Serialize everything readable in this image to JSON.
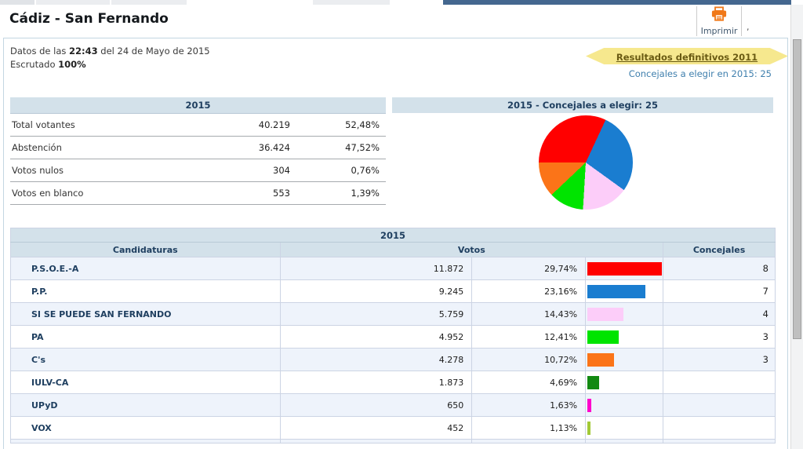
{
  "header": {
    "title": "Cádiz - San Fernando",
    "print_label": "Imprimir",
    "print_suffix": ","
  },
  "status": {
    "line1_prefix": "Datos de las ",
    "time": "22:43",
    "line1_suffix": " del 24 de Mayo de 2015",
    "line2_prefix": "Escrutado ",
    "line2_value": "100%"
  },
  "links": {
    "final_results": "Resultados definitivos 2011",
    "councillors_note": "Concejales a elegir en 2015: 25"
  },
  "summary_table": {
    "title": "2015",
    "rows": [
      {
        "label": "Total votantes",
        "value": "40.219",
        "pct": "52,48%"
      },
      {
        "label": "Abstención",
        "value": "36.424",
        "pct": "47,52%"
      },
      {
        "label": "Votos nulos",
        "value": "304",
        "pct": "0,76%"
      },
      {
        "label": "Votos en blanco",
        "value": "553",
        "pct": "1,39%"
      }
    ]
  },
  "pie_panel": {
    "title": "2015 - Concejales a elegir: 25"
  },
  "results_table": {
    "title": "2015",
    "col_candidaturas": "Candidaturas",
    "col_votos": "Votos",
    "col_concejales": "Concejales",
    "rows": [
      {
        "party": "P.S.O.E.-A",
        "votes": "11.872",
        "pct": "29,74%",
        "pct_value": 29.74,
        "color": "#ff0000",
        "seats": "8"
      },
      {
        "party": "P.P.",
        "votes": "9.245",
        "pct": "23,16%",
        "pct_value": 23.16,
        "color": "#1a7dd0",
        "seats": "7"
      },
      {
        "party": "SI SE PUEDE SAN FERNANDO",
        "votes": "5.759",
        "pct": "14,43%",
        "pct_value": 14.43,
        "color": "#fccdf9",
        "seats": "4"
      },
      {
        "party": "PA",
        "votes": "4.952",
        "pct": "12,41%",
        "pct_value": 12.41,
        "color": "#00e400",
        "seats": "3"
      },
      {
        "party": "C's",
        "votes": "4.278",
        "pct": "10,72%",
        "pct_value": 10.72,
        "color": "#fb7418",
        "seats": "3"
      },
      {
        "party": "IULV-CA",
        "votes": "1.873",
        "pct": "4,69%",
        "pct_value": 4.69,
        "color": "#128912",
        "seats": ""
      },
      {
        "party": "UPyD",
        "votes": "650",
        "pct": "1,63%",
        "pct_value": 1.63,
        "color": "#ff00cc",
        "seats": ""
      },
      {
        "party": "VOX",
        "votes": "452",
        "pct": "1,13%",
        "pct_value": 1.13,
        "color": "#a2c937",
        "seats": ""
      }
    ]
  },
  "chart_data": [
    {
      "type": "pie",
      "title": "2015 - Concejales a elegir: 25",
      "labels": [
        "P.P.",
        "SI SE PUEDE SAN FERNANDO",
        "PA",
        "C's",
        "P.S.O.E.-A"
      ],
      "values": [
        7,
        4,
        3,
        3,
        8
      ],
      "colors": [
        "#1a7dd0",
        "#fccdf9",
        "#00e400",
        "#fb7418",
        "#ff0000"
      ],
      "total": 25,
      "start_angle_deg": 25,
      "clockwise": true,
      "legend_position": "none"
    },
    {
      "type": "bar",
      "orientation": "horizontal",
      "title": "Votos % por candidatura (barras en tabla)",
      "categories": [
        "P.S.O.E.-A",
        "P.P.",
        "SI SE PUEDE SAN FERNANDO",
        "PA",
        "C's",
        "IULV-CA",
        "UPyD",
        "VOX"
      ],
      "values": [
        29.74,
        23.16,
        14.43,
        12.41,
        10.72,
        4.69,
        1.63,
        1.13
      ],
      "colors": [
        "#ff0000",
        "#1a7dd0",
        "#fccdf9",
        "#00e400",
        "#fb7418",
        "#128912",
        "#ff00cc",
        "#a2c937"
      ],
      "xlabel": "",
      "ylabel": "",
      "xlim": [
        0,
        31
      ],
      "grid": false
    }
  ],
  "colors": {
    "accent_orange": "#f07818",
    "table_header_bg": "#d3e1ea",
    "row_alt_bg": "#eef3fb",
    "navy_text": "#1f3f60",
    "ribbon_bg": "#f6e88e",
    "ribbon_text": "#6a5b13",
    "link_blue": "#3f7fad",
    "topbar_blue": "#44678f"
  }
}
